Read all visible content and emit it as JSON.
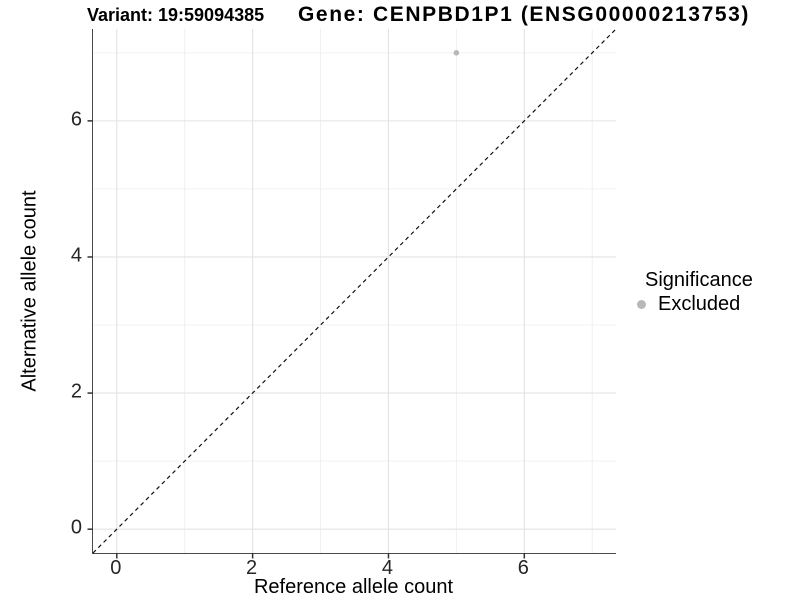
{
  "titles": {
    "variant": "Variant: 19:59094385",
    "gene": "Gene: CENPBD1P1 (ENSG00000213753)"
  },
  "chart_data": {
    "type": "scatter",
    "title": "Variant: 19:59094385   Gene: CENPBD1P1 (ENSG00000213753)",
    "xlabel": "Reference allele count",
    "ylabel": "Alternative allele count",
    "xlim": [
      -0.35,
      7.35
    ],
    "ylim": [
      -0.35,
      7.35
    ],
    "xticks": [
      0,
      2,
      4,
      6
    ],
    "yticks": [
      0,
      2,
      4,
      6
    ],
    "x_minor_ticks": [
      1,
      3,
      5,
      7
    ],
    "y_minor_ticks": [
      1,
      3,
      5,
      7
    ],
    "grid": "major and minor, light gray on white",
    "legend_title": "Significance",
    "legend_position": "right",
    "series": [
      {
        "name": "Excluded",
        "color": "#b8b8b8",
        "points": [
          {
            "x": 5,
            "y": 7
          }
        ]
      }
    ],
    "reference_line": {
      "type": "identity y=x",
      "slope": 1,
      "intercept": 0,
      "style": "dashed",
      "color": "#111111"
    }
  },
  "colors": {
    "background": "#ffffff",
    "axis_line": "#4a4a4a",
    "tick_mark": "#333333",
    "tick_text": "#262626",
    "grid_major": "#e3e3e3",
    "grid_minor": "#f0f0f0",
    "point": "#b8b8b8",
    "ref_line": "#111111"
  }
}
